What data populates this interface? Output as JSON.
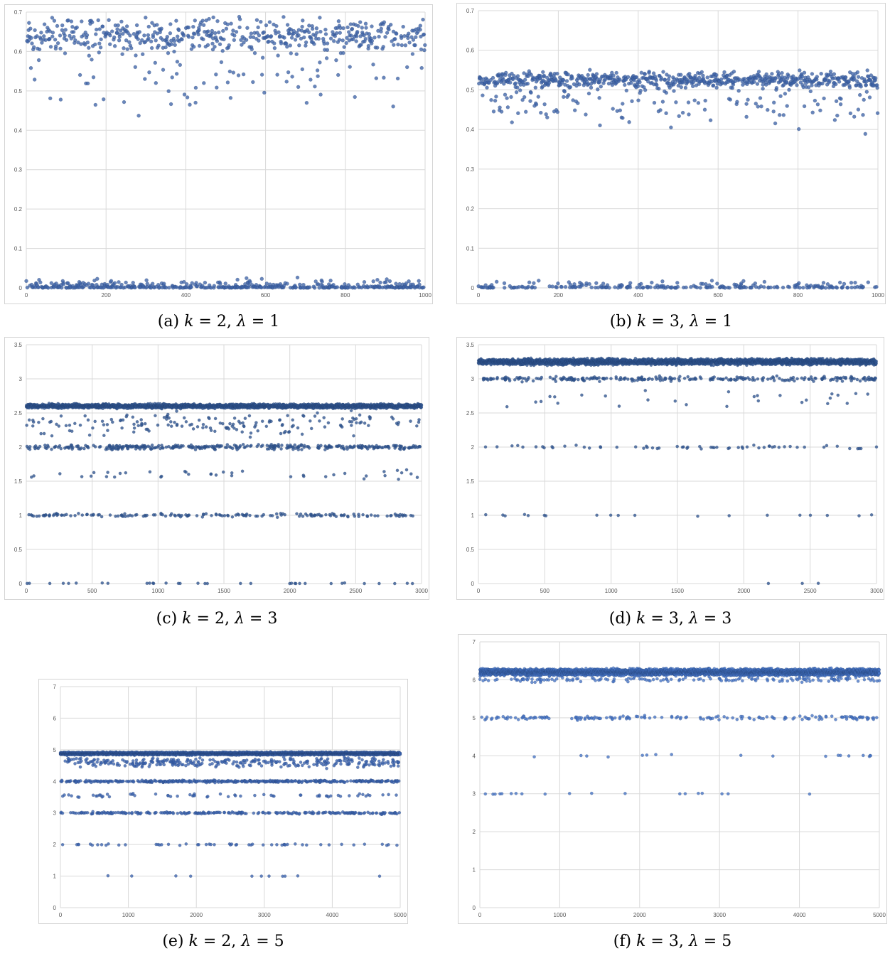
{
  "chart_data": [
    {
      "type": "scatter",
      "caption": {
        "tag": "(a)",
        "k": "2",
        "lambda": "1"
      },
      "xlim": [
        0,
        1000
      ],
      "ylim": [
        0,
        0.7
      ],
      "xticks": [
        0,
        200,
        400,
        600,
        800,
        1000
      ],
      "yticks": [
        0,
        0.1,
        0.2,
        0.3,
        0.4,
        0.5,
        0.6,
        0.7
      ],
      "grid": true,
      "marker_color": "#3f64a8",
      "n_points": 1000,
      "clusters": [
        {
          "value": 0.64,
          "spread": 0.025,
          "share": 0.47
        },
        {
          "value": 0.55,
          "spread": 0.045,
          "share": 0.07
        },
        {
          "value": 0.47,
          "spread": 0.025,
          "share": 0.02
        },
        {
          "value": 0.0,
          "spread": 0.012,
          "share": 0.44
        }
      ]
    },
    {
      "type": "scatter",
      "caption": {
        "tag": "(b)",
        "k": "3",
        "lambda": "1"
      },
      "xlim": [
        0,
        1000
      ],
      "ylim": [
        0,
        0.7
      ],
      "xticks": [
        0,
        200,
        400,
        600,
        800,
        1000
      ],
      "yticks": [
        0,
        0.1,
        0.2,
        0.3,
        0.4,
        0.5,
        0.6,
        0.7
      ],
      "grid": true,
      "marker_color": "#3f64a8",
      "n_points": 1000,
      "clusters": [
        {
          "value": 0.525,
          "spread": 0.012,
          "share": 0.62
        },
        {
          "value": 0.48,
          "spread": 0.03,
          "share": 0.12
        },
        {
          "value": 0.43,
          "spread": 0.025,
          "share": 0.04
        },
        {
          "value": 0.0,
          "spread": 0.01,
          "share": 0.22
        }
      ]
    },
    {
      "type": "scatter",
      "caption": {
        "tag": "(c)",
        "k": "2",
        "lambda": "3"
      },
      "xlim": [
        0,
        3000
      ],
      "ylim": [
        0,
        3.5
      ],
      "xticks": [
        0,
        500,
        1000,
        1500,
        2000,
        2500,
        3000
      ],
      "yticks": [
        0,
        0.5,
        1,
        1.5,
        2,
        2.5,
        3,
        3.5
      ],
      "grid": true,
      "marker_color": "#2f548f",
      "n_points": 3000,
      "clusters": [
        {
          "value": 2.6,
          "spread": 0.018,
          "share": 0.74
        },
        {
          "value": 2.35,
          "spread": 0.1,
          "share": 0.06
        },
        {
          "value": 2.0,
          "spread": 0.02,
          "share": 0.12
        },
        {
          "value": 1.6,
          "spread": 0.04,
          "share": 0.015
        },
        {
          "value": 1.0,
          "spread": 0.015,
          "share": 0.055
        },
        {
          "value": 0.0,
          "spread": 0.005,
          "share": 0.01
        }
      ]
    },
    {
      "type": "scatter",
      "caption": {
        "tag": "(d)",
        "k": "3",
        "lambda": "3"
      },
      "xlim": [
        0,
        3000
      ],
      "ylim": [
        0,
        3.5
      ],
      "xticks": [
        0,
        500,
        1000,
        1500,
        2000,
        2500,
        3000
      ],
      "yticks": [
        0,
        0.5,
        1,
        1.5,
        2,
        2.5,
        3,
        3.5
      ],
      "grid": true,
      "marker_color": "#2f548f",
      "n_points": 3000,
      "clusters": [
        {
          "value": 3.25,
          "spread": 0.025,
          "share": 0.87
        },
        {
          "value": 3.0,
          "spread": 0.02,
          "share": 0.085
        },
        {
          "value": 2.7,
          "spread": 0.08,
          "share": 0.01
        },
        {
          "value": 2.0,
          "spread": 0.015,
          "share": 0.022
        },
        {
          "value": 1.0,
          "spread": 0.01,
          "share": 0.008
        },
        {
          "value": 0.0,
          "spread": 0.002,
          "share": 0.001
        }
      ]
    },
    {
      "type": "scatter",
      "caption": {
        "tag": "(e)",
        "k": "2",
        "lambda": "5"
      },
      "xlim": [
        0,
        5000
      ],
      "ylim": [
        0,
        7
      ],
      "xticks": [
        0,
        1000,
        2000,
        3000,
        4000,
        5000
      ],
      "yticks": [
        0,
        1,
        2,
        3,
        4,
        5,
        6,
        7
      ],
      "grid": true,
      "marker_color": "#3a62ad",
      "n_points": 5000,
      "clusters": [
        {
          "value": 4.88,
          "spread": 0.025,
          "share": 0.77
        },
        {
          "value": 4.6,
          "spread": 0.09,
          "share": 0.07
        },
        {
          "value": 4.0,
          "spread": 0.02,
          "share": 0.08
        },
        {
          "value": 3.55,
          "spread": 0.04,
          "share": 0.01
        },
        {
          "value": 3.0,
          "spread": 0.02,
          "share": 0.05
        },
        {
          "value": 2.0,
          "spread": 0.015,
          "share": 0.01
        },
        {
          "value": 1.0,
          "spread": 0.005,
          "share": 0.002
        }
      ]
    },
    {
      "type": "scatter",
      "caption": {
        "tag": "(f)",
        "k": "3",
        "lambda": "5"
      },
      "xlim": [
        0,
        5000
      ],
      "ylim": [
        0,
        7
      ],
      "xticks": [
        0,
        1000,
        2000,
        3000,
        4000,
        5000
      ],
      "yticks": [
        0,
        1,
        2,
        3,
        4,
        5,
        6,
        7
      ],
      "grid": true,
      "marker_color": "#4472c4",
      "n_points": 5000,
      "clusters": [
        {
          "value": 6.2,
          "spread": 0.05,
          "share": 0.93
        },
        {
          "value": 6.0,
          "spread": 0.04,
          "share": 0.03
        },
        {
          "value": 5.0,
          "spread": 0.03,
          "share": 0.03
        },
        {
          "value": 4.0,
          "spread": 0.02,
          "share": 0.004
        },
        {
          "value": 3.0,
          "spread": 0.01,
          "share": 0.004
        }
      ]
    }
  ]
}
